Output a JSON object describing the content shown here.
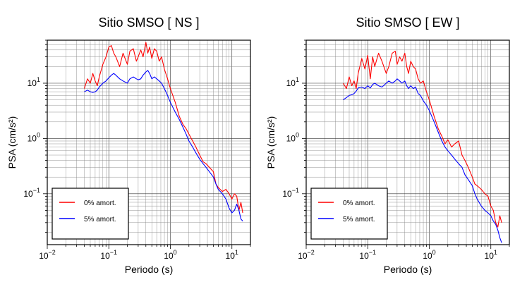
{
  "chart_data": [
    {
      "type": "line",
      "title": "Sitio SMSO [ NS ]",
      "xlabel": "Periodo (s)",
      "ylabel": "PSA (cm/s²)",
      "xscale": "log",
      "yscale": "log",
      "xlim": [
        0.01,
        20
      ],
      "ylim": [
        0.012,
        60
      ],
      "grid": true,
      "legend_position": "lower-left",
      "x_ticks": [
        {
          "value": 0.01,
          "base": "10",
          "exp": "−2"
        },
        {
          "value": 0.1,
          "base": "10",
          "exp": "−1"
        },
        {
          "value": 1,
          "base": "10",
          "exp": "0"
        },
        {
          "value": 10,
          "base": "10",
          "exp": "1"
        }
      ],
      "y_ticks": [
        {
          "value": 0.1,
          "base": "10",
          "exp": "−1"
        },
        {
          "value": 1,
          "base": "10",
          "exp": "0"
        },
        {
          "value": 10,
          "base": "10",
          "exp": "1"
        }
      ],
      "series": [
        {
          "name": "0% amort.",
          "color": "#ff0000",
          "x": [
            0.04,
            0.045,
            0.05,
            0.055,
            0.06,
            0.065,
            0.07,
            0.08,
            0.09,
            0.1,
            0.11,
            0.12,
            0.13,
            0.15,
            0.17,
            0.2,
            0.22,
            0.25,
            0.28,
            0.3,
            0.33,
            0.36,
            0.4,
            0.43,
            0.46,
            0.5,
            0.55,
            0.6,
            0.66,
            0.72,
            0.8,
            0.9,
            1.0,
            1.2,
            1.4,
            1.6,
            1.8,
            2.0,
            2.3,
            2.6,
            3.0,
            3.4,
            3.8,
            4.3,
            5.0,
            5.5,
            6.0,
            7.0,
            8.0,
            9.0,
            10.0,
            11.0,
            12.0,
            13.0,
            14.0,
            15.0
          ],
          "y": [
            8,
            12,
            10,
            15,
            11,
            9,
            13,
            22,
            30,
            45,
            48,
            35,
            30,
            20,
            35,
            22,
            38,
            42,
            25,
            30,
            40,
            30,
            55,
            35,
            45,
            28,
            42,
            38,
            25,
            30,
            18,
            12,
            8,
            4.5,
            2.5,
            1.8,
            1.5,
            1.2,
            0.9,
            0.7,
            0.5,
            0.38,
            0.35,
            0.3,
            0.25,
            0.15,
            0.13,
            0.11,
            0.12,
            0.1,
            0.08,
            0.1,
            0.09,
            0.05,
            0.07,
            0.045
          ]
        },
        {
          "name": "5% amort.",
          "color": "#0000ff",
          "x": [
            0.04,
            0.045,
            0.05,
            0.055,
            0.06,
            0.065,
            0.07,
            0.08,
            0.09,
            0.1,
            0.11,
            0.12,
            0.13,
            0.15,
            0.17,
            0.2,
            0.22,
            0.25,
            0.28,
            0.3,
            0.33,
            0.36,
            0.4,
            0.43,
            0.46,
            0.5,
            0.55,
            0.6,
            0.66,
            0.72,
            0.8,
            0.9,
            1.0,
            1.2,
            1.4,
            1.6,
            1.8,
            2.0,
            2.3,
            2.6,
            3.0,
            3.4,
            3.8,
            4.3,
            5.0,
            5.5,
            6.0,
            7.0,
            8.0,
            9.0,
            10.0,
            11.0,
            12.0,
            13.0,
            14.0,
            15.0
          ],
          "y": [
            7,
            7.5,
            7,
            6.8,
            7,
            7.5,
            8.5,
            10,
            11,
            12.5,
            14,
            15,
            14,
            12,
            11,
            10,
            12,
            13,
            12,
            11.5,
            12,
            14,
            16,
            17,
            15,
            12,
            13,
            12,
            11,
            10,
            8,
            6,
            4.5,
            3,
            2.2,
            1.6,
            1.2,
            0.9,
            0.7,
            0.55,
            0.42,
            0.35,
            0.3,
            0.25,
            0.2,
            0.15,
            0.12,
            0.1,
            0.08,
            0.055,
            0.045,
            0.05,
            0.065,
            0.05,
            0.035,
            0.032
          ]
        }
      ]
    },
    {
      "type": "line",
      "title": "Sitio SMSO [ EW ]",
      "xlabel": "Periodo (s)",
      "ylabel": "PSA (cm/s²)",
      "xscale": "log",
      "yscale": "log",
      "xlim": [
        0.01,
        20
      ],
      "ylim": [
        0.012,
        60
      ],
      "grid": true,
      "legend_position": "lower-left",
      "x_ticks": [
        {
          "value": 0.01,
          "base": "10",
          "exp": "−2"
        },
        {
          "value": 0.1,
          "base": "10",
          "exp": "−1"
        },
        {
          "value": 1,
          "base": "10",
          "exp": "0"
        },
        {
          "value": 10,
          "base": "10",
          "exp": "1"
        }
      ],
      "y_ticks": [
        {
          "value": 0.1,
          "base": "10",
          "exp": "−1"
        },
        {
          "value": 1,
          "base": "10",
          "exp": "0"
        },
        {
          "value": 10,
          "base": "10",
          "exp": "1"
        }
      ],
      "series": [
        {
          "name": "0% amort.",
          "color": "#ff0000",
          "x": [
            0.04,
            0.045,
            0.05,
            0.055,
            0.06,
            0.065,
            0.07,
            0.08,
            0.09,
            0.1,
            0.11,
            0.12,
            0.13,
            0.15,
            0.17,
            0.2,
            0.22,
            0.25,
            0.28,
            0.3,
            0.33,
            0.36,
            0.4,
            0.43,
            0.46,
            0.5,
            0.55,
            0.6,
            0.66,
            0.72,
            0.8,
            0.9,
            1.0,
            1.2,
            1.4,
            1.6,
            1.8,
            2.0,
            2.3,
            2.6,
            3.0,
            3.4,
            3.8,
            4.3,
            5.0,
            5.5,
            6.0,
            7.0,
            8.0,
            9.0,
            10.0,
            11.0,
            12.0,
            13.0,
            14.0,
            15.0
          ],
          "y": [
            10,
            8,
            13,
            9,
            11,
            8,
            15,
            28,
            18,
            32,
            12,
            30,
            20,
            35,
            25,
            15,
            20,
            35,
            38,
            22,
            30,
            25,
            35,
            20,
            15,
            25,
            20,
            18,
            12,
            10,
            11,
            7,
            5,
            2.5,
            1.5,
            1.1,
            0.8,
            0.95,
            0.7,
            0.8,
            0.9,
            0.5,
            0.4,
            0.3,
            0.2,
            0.15,
            0.14,
            0.12,
            0.1,
            0.09,
            0.06,
            0.05,
            0.03,
            0.025,
            0.04,
            0.03
          ]
        },
        {
          "name": "5% amort.",
          "color": "#0000ff",
          "x": [
            0.04,
            0.045,
            0.05,
            0.055,
            0.06,
            0.065,
            0.07,
            0.08,
            0.09,
            0.1,
            0.11,
            0.12,
            0.13,
            0.15,
            0.17,
            0.2,
            0.22,
            0.25,
            0.28,
            0.3,
            0.33,
            0.36,
            0.4,
            0.43,
            0.46,
            0.5,
            0.55,
            0.6,
            0.66,
            0.72,
            0.8,
            0.9,
            1.0,
            1.2,
            1.4,
            1.6,
            1.8,
            2.0,
            2.3,
            2.6,
            3.0,
            3.4,
            3.8,
            4.3,
            5.0,
            5.5,
            6.0,
            7.0,
            8.0,
            9.0,
            10.0,
            11.0,
            12.0,
            13.0,
            14.0,
            15.0
          ],
          "y": [
            5,
            5.5,
            6,
            6.2,
            6.5,
            7.2,
            8.2,
            8.5,
            8,
            9,
            8.2,
            9.5,
            10,
            9,
            8.5,
            10,
            11,
            10,
            11,
            12,
            11,
            10,
            11,
            9,
            8,
            9,
            8,
            8.5,
            6.5,
            6,
            4.8,
            4,
            3.2,
            2,
            1.3,
            0.9,
            0.7,
            0.6,
            0.5,
            0.42,
            0.35,
            0.3,
            0.22,
            0.18,
            0.14,
            0.1,
            0.08,
            0.06,
            0.05,
            0.045,
            0.04,
            0.032,
            0.028,
            0.022,
            0.016,
            0.013
          ]
        }
      ]
    }
  ]
}
